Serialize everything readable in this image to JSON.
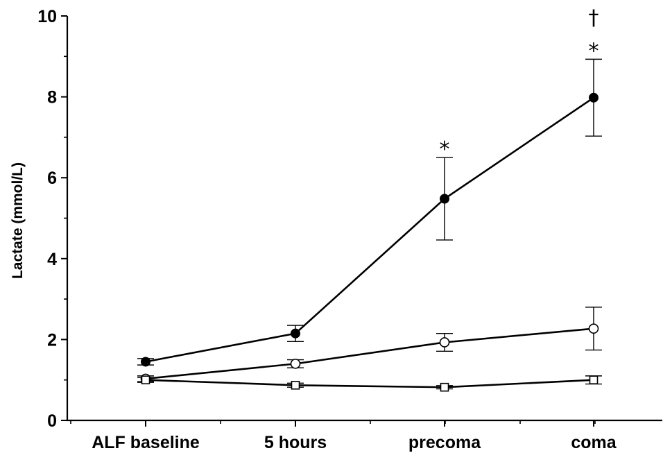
{
  "chart_data": {
    "type": "line",
    "title": "",
    "xlabel": "",
    "ylabel": "Lactate (mmol/L)",
    "ylim": [
      0,
      10
    ],
    "yticks": [
      0,
      2,
      4,
      6,
      8,
      10
    ],
    "categories": [
      "ALF baseline",
      "5 hours",
      "precoma",
      "coma"
    ],
    "series": [
      {
        "marker": "filled-circle",
        "values": [
          1.45,
          2.15,
          5.48,
          7.98
        ],
        "error": [
          0.08,
          0.2,
          1.02,
          0.95
        ]
      },
      {
        "marker": "open-circle",
        "values": [
          1.03,
          1.4,
          1.93,
          2.27
        ],
        "error": [
          0.07,
          0.1,
          0.22,
          0.53
        ]
      },
      {
        "marker": "open-square",
        "values": [
          1.0,
          0.87,
          0.82,
          1.0
        ],
        "error": [
          0.06,
          0.05,
          0.04,
          0.1
        ]
      }
    ],
    "annotations": [
      {
        "category": "precoma",
        "series": 0,
        "text": "*"
      },
      {
        "category": "coma",
        "series": 0,
        "text": "*"
      },
      {
        "category": "coma",
        "series": 0,
        "text": "†"
      }
    ]
  }
}
